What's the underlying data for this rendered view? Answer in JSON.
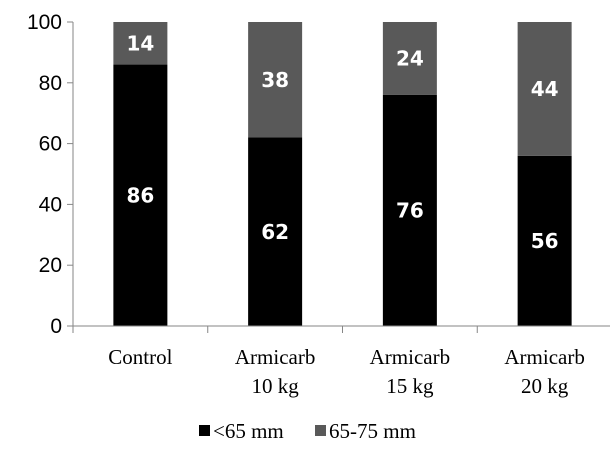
{
  "chart_data": {
    "type": "bar",
    "stacked": true,
    "categories": [
      [
        "Control"
      ],
      [
        "Armicarb",
        "10 kg"
      ],
      [
        "Armicarb",
        "15 kg"
      ],
      [
        "Armicarb",
        "20 kg"
      ]
    ],
    "series": [
      {
        "name": "<65 mm",
        "values": [
          86,
          62,
          76,
          56
        ],
        "color": "#000000"
      },
      {
        "name": "65-75 mm",
        "values": [
          14,
          38,
          24,
          44
        ],
        "color": "#595959"
      }
    ],
    "ylim": [
      0,
      100
    ],
    "yticks": [
      0,
      20,
      40,
      60,
      80,
      100
    ],
    "grid": false,
    "legend": "bottom",
    "data_label_color": "#ffffff",
    "title": "",
    "xlabel": "",
    "ylabel": ""
  }
}
